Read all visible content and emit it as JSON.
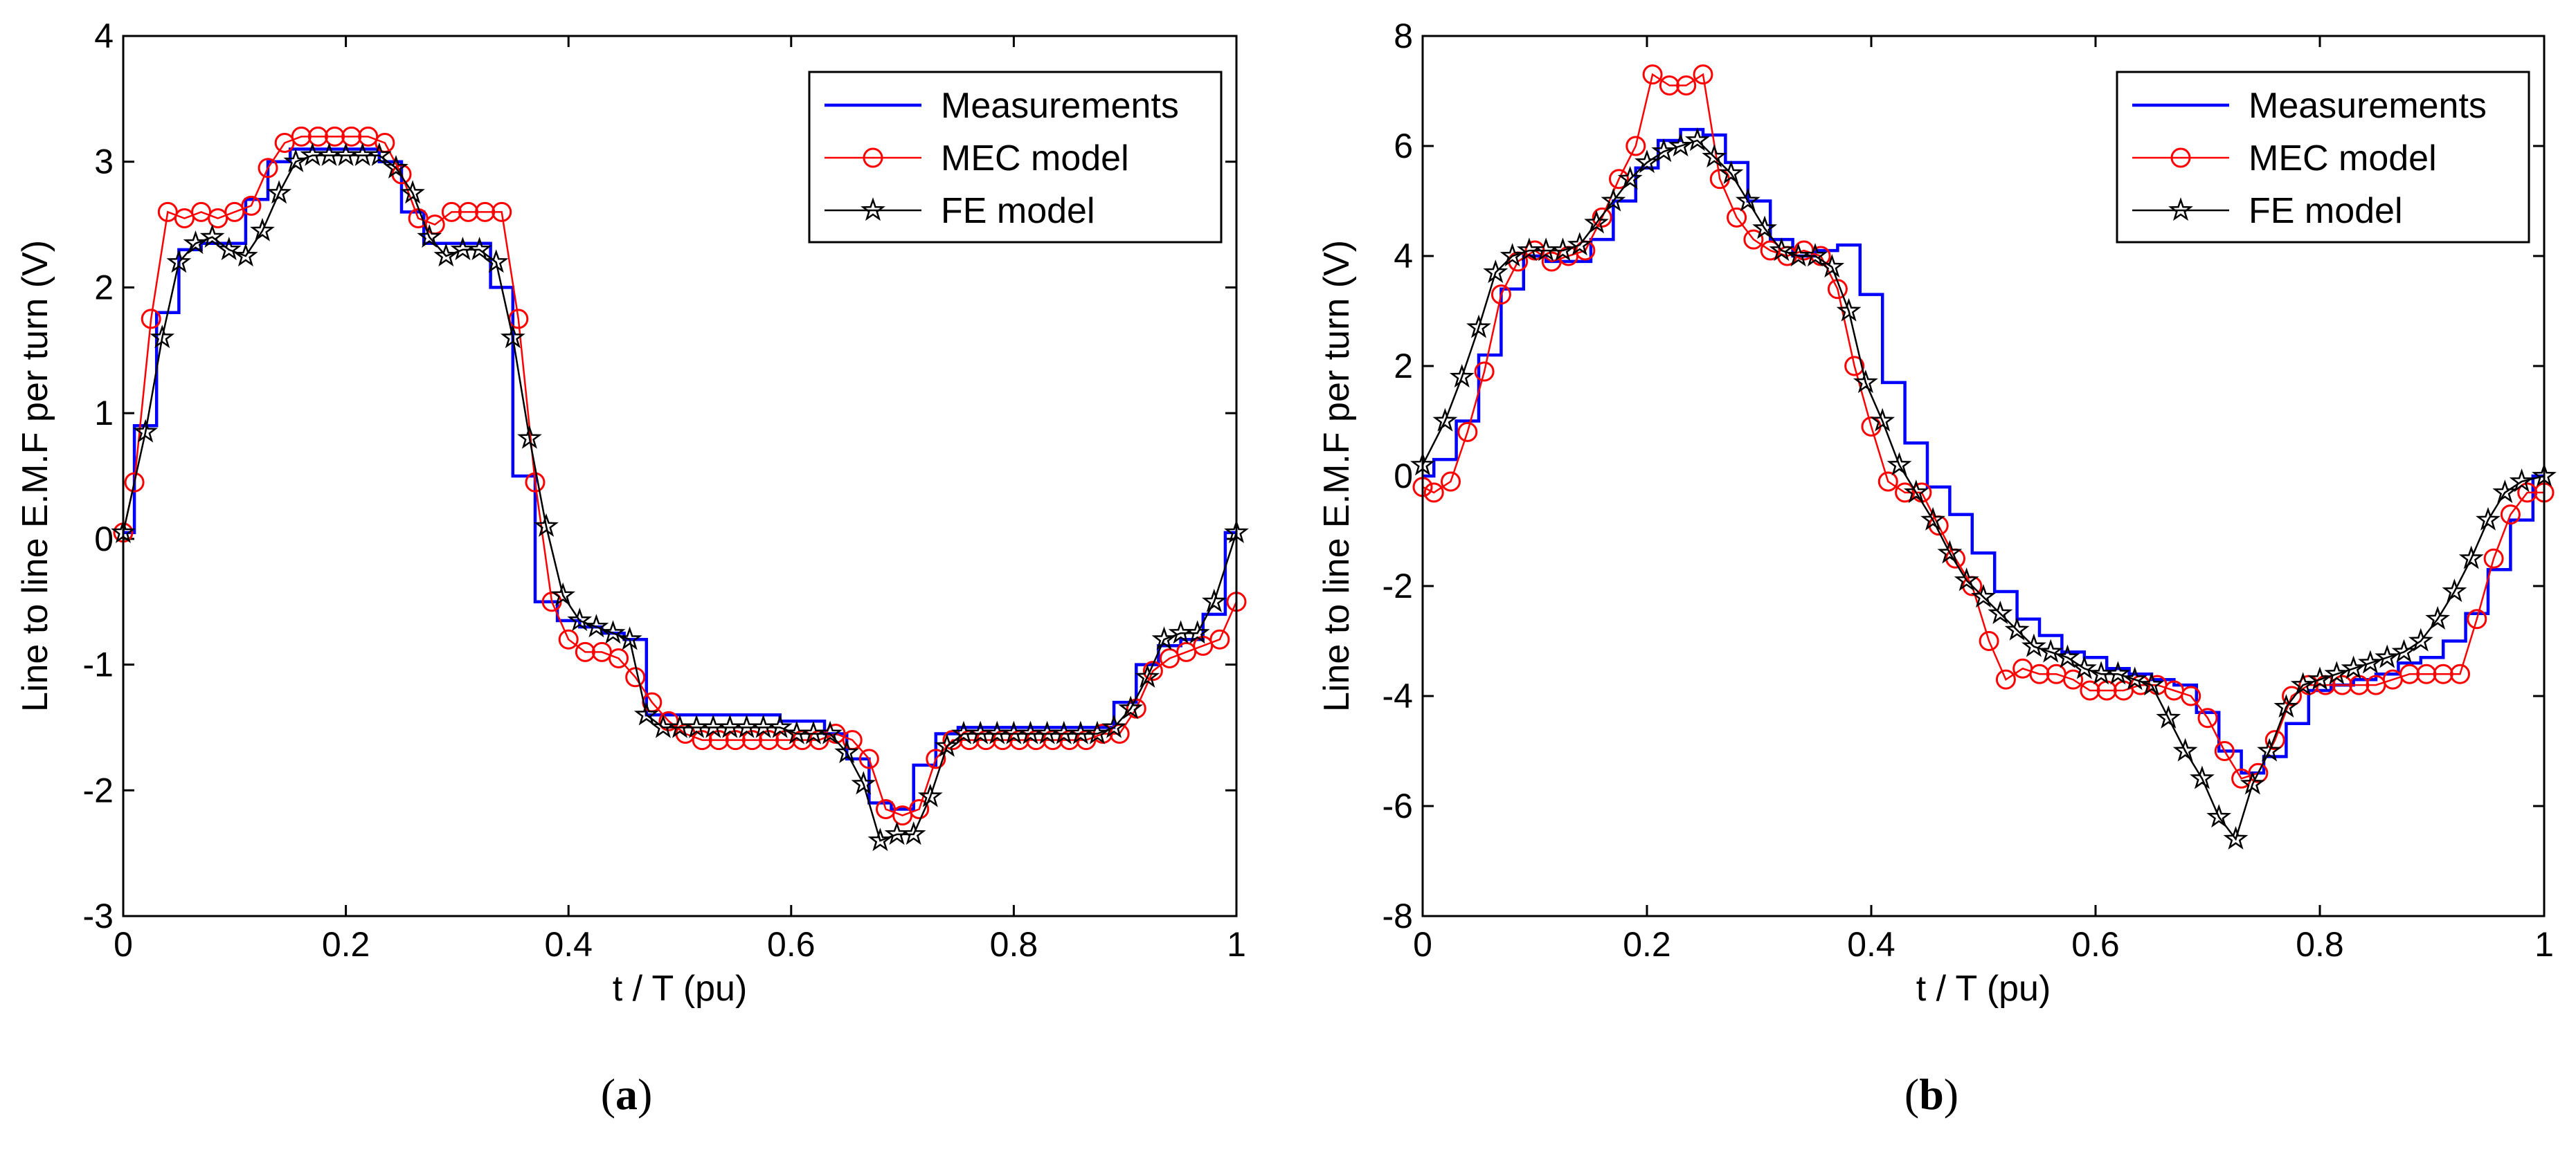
{
  "chart_data": [
    {
      "type": "line",
      "panel": "a",
      "caption_letter": "a",
      "caption_open": "(",
      "caption_close": ")",
      "xlabel": "t / T (pu)",
      "ylabel": "Line to line E.M.F per turn (V)",
      "xlim": [
        0,
        1
      ],
      "ylim": [
        -3,
        4
      ],
      "xticks": [
        0,
        0.2,
        0.4,
        0.6,
        0.8,
        1
      ],
      "xtick_labels": [
        "0",
        "0.2",
        "0.4",
        "0.6",
        "0.8",
        "1"
      ],
      "yticks": [
        -3,
        -2,
        -1,
        0,
        1,
        2,
        3,
        4
      ],
      "ytick_labels": [
        "-3",
        "-2",
        "-1",
        "0",
        "1",
        "2",
        "3",
        "4"
      ],
      "legend_position": "top-right",
      "series": [
        {
          "name": "Measurements",
          "color": "#0000ff",
          "marker": "none",
          "x": [
            0,
            0.02,
            0.04,
            0.06,
            0.08,
            0.1,
            0.12,
            0.14,
            0.16,
            0.18,
            0.2,
            0.22,
            0.24,
            0.26,
            0.28,
            0.3,
            0.32,
            0.34,
            0.36,
            0.38,
            0.4,
            0.42,
            0.44,
            0.46,
            0.48,
            0.5,
            0.52,
            0.54,
            0.56,
            0.58,
            0.6,
            0.62,
            0.64,
            0.66,
            0.68,
            0.7,
            0.72,
            0.74,
            0.76,
            0.78,
            0.8,
            0.82,
            0.84,
            0.86,
            0.88,
            0.9,
            0.92,
            0.94,
            0.96,
            0.98,
            1.0
          ],
          "y": [
            0.05,
            0.9,
            1.8,
            2.3,
            2.35,
            2.35,
            2.7,
            3.0,
            3.1,
            3.1,
            3.1,
            3.1,
            3.0,
            2.6,
            2.35,
            2.35,
            2.35,
            2.0,
            0.5,
            -0.5,
            -0.65,
            -0.7,
            -0.75,
            -0.8,
            -1.4,
            -1.4,
            -1.4,
            -1.4,
            -1.4,
            -1.4,
            -1.45,
            -1.45,
            -1.55,
            -1.75,
            -2.1,
            -2.15,
            -1.8,
            -1.55,
            -1.5,
            -1.5,
            -1.5,
            -1.5,
            -1.5,
            -1.5,
            -1.5,
            -1.3,
            -1.0,
            -0.85,
            -0.8,
            -0.6,
            0.05
          ]
        },
        {
          "name": "MEC model",
          "color": "#ff0000",
          "marker": "circle",
          "x": [
            0,
            0.01,
            0.025,
            0.04,
            0.055,
            0.07,
            0.085,
            0.1,
            0.115,
            0.13,
            0.145,
            0.16,
            0.175,
            0.19,
            0.205,
            0.22,
            0.235,
            0.25,
            0.265,
            0.28,
            0.295,
            0.31,
            0.325,
            0.34,
            0.355,
            0.37,
            0.385,
            0.4,
            0.415,
            0.43,
            0.445,
            0.46,
            0.475,
            0.49,
            0.505,
            0.52,
            0.535,
            0.55,
            0.565,
            0.58,
            0.595,
            0.61,
            0.625,
            0.64,
            0.655,
            0.67,
            0.685,
            0.7,
            0.715,
            0.73,
            0.745,
            0.76,
            0.775,
            0.79,
            0.805,
            0.82,
            0.835,
            0.85,
            0.865,
            0.88,
            0.895,
            0.91,
            0.925,
            0.94,
            0.955,
            0.97,
            0.985,
            1.0
          ],
          "y": [
            0.05,
            0.45,
            1.75,
            2.6,
            2.55,
            2.6,
            2.55,
            2.6,
            2.65,
            2.95,
            3.15,
            3.2,
            3.2,
            3.2,
            3.2,
            3.2,
            3.15,
            2.9,
            2.55,
            2.5,
            2.6,
            2.6,
            2.6,
            2.6,
            1.75,
            0.45,
            -0.5,
            -0.8,
            -0.9,
            -0.9,
            -0.95,
            -1.1,
            -1.3,
            -1.45,
            -1.55,
            -1.6,
            -1.6,
            -1.6,
            -1.6,
            -1.6,
            -1.6,
            -1.6,
            -1.6,
            -1.55,
            -1.6,
            -1.75,
            -2.15,
            -2.2,
            -2.15,
            -1.75,
            -1.6,
            -1.6,
            -1.6,
            -1.6,
            -1.6,
            -1.6,
            -1.6,
            -1.6,
            -1.6,
            -1.55,
            -1.55,
            -1.35,
            -1.05,
            -0.95,
            -0.9,
            -0.85,
            -0.8,
            -0.5
          ]
        },
        {
          "name": "FE model",
          "color": "#000000",
          "marker": "star",
          "x": [
            0,
            0.02,
            0.035,
            0.05,
            0.065,
            0.08,
            0.095,
            0.11,
            0.125,
            0.14,
            0.155,
            0.17,
            0.185,
            0.2,
            0.215,
            0.23,
            0.245,
            0.26,
            0.275,
            0.29,
            0.305,
            0.32,
            0.335,
            0.35,
            0.365,
            0.38,
            0.395,
            0.41,
            0.425,
            0.44,
            0.455,
            0.47,
            0.485,
            0.5,
            0.515,
            0.53,
            0.545,
            0.56,
            0.575,
            0.59,
            0.605,
            0.62,
            0.635,
            0.65,
            0.665,
            0.68,
            0.695,
            0.71,
            0.725,
            0.74,
            0.755,
            0.77,
            0.785,
            0.8,
            0.815,
            0.83,
            0.845,
            0.86,
            0.875,
            0.89,
            0.905,
            0.92,
            0.935,
            0.95,
            0.965,
            0.98,
            1.0
          ],
          "y": [
            0.05,
            0.85,
            1.6,
            2.2,
            2.35,
            2.4,
            2.3,
            2.25,
            2.45,
            2.75,
            3.0,
            3.05,
            3.05,
            3.05,
            3.05,
            3.05,
            2.95,
            2.75,
            2.4,
            2.25,
            2.3,
            2.3,
            2.2,
            1.6,
            0.8,
            0.1,
            -0.45,
            -0.65,
            -0.7,
            -0.75,
            -0.8,
            -1.4,
            -1.5,
            -1.5,
            -1.5,
            -1.5,
            -1.5,
            -1.5,
            -1.5,
            -1.5,
            -1.55,
            -1.55,
            -1.55,
            -1.7,
            -1.95,
            -2.4,
            -2.35,
            -2.35,
            -2.05,
            -1.65,
            -1.55,
            -1.55,
            -1.55,
            -1.55,
            -1.55,
            -1.55,
            -1.55,
            -1.55,
            -1.55,
            -1.5,
            -1.35,
            -1.1,
            -0.8,
            -0.75,
            -0.75,
            -0.5,
            0.05
          ]
        }
      ]
    },
    {
      "type": "line",
      "panel": "b",
      "caption_letter": "b",
      "caption_open": "(",
      "caption_close": ")",
      "xlabel": "t / T (pu)",
      "ylabel": "Line to line E.M.F per turn (V)",
      "xlim": [
        0,
        1
      ],
      "ylim": [
        -8,
        8
      ],
      "xticks": [
        0,
        0.2,
        0.4,
        0.6,
        0.8,
        1
      ],
      "xtick_labels": [
        "0",
        "0.2",
        "0.4",
        "0.6",
        "0.8",
        "1"
      ],
      "yticks": [
        -8,
        -6,
        -4,
        -2,
        0,
        2,
        4,
        6,
        8
      ],
      "ytick_labels": [
        "-8",
        "-6",
        "-4",
        "-2",
        "0",
        "2",
        "4",
        "6",
        "8"
      ],
      "legend_position": "top-right",
      "series": [
        {
          "name": "Measurements",
          "color": "#0000ff",
          "marker": "none",
          "x": [
            0,
            0.02,
            0.04,
            0.06,
            0.08,
            0.1,
            0.12,
            0.14,
            0.16,
            0.18,
            0.2,
            0.22,
            0.24,
            0.26,
            0.28,
            0.3,
            0.32,
            0.34,
            0.36,
            0.38,
            0.4,
            0.42,
            0.44,
            0.46,
            0.48,
            0.5,
            0.52,
            0.54,
            0.56,
            0.58,
            0.6,
            0.62,
            0.64,
            0.66,
            0.68,
            0.7,
            0.72,
            0.74,
            0.76,
            0.78,
            0.8,
            0.82,
            0.84,
            0.86,
            0.88,
            0.9,
            0.92,
            0.94,
            0.96,
            0.98,
            1.0
          ],
          "y": [
            0.0,
            0.3,
            1.0,
            2.2,
            3.4,
            4.0,
            3.9,
            3.9,
            4.3,
            5.0,
            5.6,
            6.1,
            6.3,
            6.2,
            5.7,
            5.0,
            4.3,
            4.0,
            4.1,
            4.2,
            3.3,
            1.7,
            0.6,
            -0.2,
            -0.7,
            -1.4,
            -2.1,
            -2.6,
            -2.9,
            -3.2,
            -3.3,
            -3.5,
            -3.6,
            -3.7,
            -3.8,
            -4.3,
            -5.0,
            -5.4,
            -5.1,
            -4.5,
            -3.9,
            -3.8,
            -3.7,
            -3.6,
            -3.4,
            -3.3,
            -3.0,
            -2.5,
            -1.7,
            -0.8,
            0.0
          ]
        },
        {
          "name": "MEC model",
          "color": "#ff0000",
          "marker": "circle",
          "x": [
            0,
            0.01,
            0.025,
            0.04,
            0.055,
            0.07,
            0.085,
            0.1,
            0.115,
            0.13,
            0.145,
            0.16,
            0.175,
            0.19,
            0.205,
            0.22,
            0.235,
            0.25,
            0.265,
            0.28,
            0.295,
            0.31,
            0.325,
            0.34,
            0.355,
            0.37,
            0.385,
            0.4,
            0.415,
            0.43,
            0.445,
            0.46,
            0.475,
            0.49,
            0.505,
            0.52,
            0.535,
            0.55,
            0.565,
            0.58,
            0.595,
            0.61,
            0.625,
            0.64,
            0.655,
            0.67,
            0.685,
            0.7,
            0.715,
            0.73,
            0.745,
            0.76,
            0.775,
            0.79,
            0.805,
            0.82,
            0.835,
            0.85,
            0.865,
            0.88,
            0.895,
            0.91,
            0.925,
            0.94,
            0.955,
            0.97,
            0.985,
            1.0
          ],
          "y": [
            -0.2,
            -0.3,
            -0.1,
            0.8,
            1.9,
            3.3,
            3.9,
            4.1,
            3.9,
            4.0,
            4.1,
            4.7,
            5.4,
            6.0,
            7.3,
            7.1,
            7.1,
            7.3,
            5.4,
            4.7,
            4.3,
            4.1,
            4.0,
            4.1,
            4.0,
            3.4,
            2.0,
            0.9,
            -0.1,
            -0.3,
            -0.3,
            -0.9,
            -1.5,
            -2.0,
            -3.0,
            -3.7,
            -3.5,
            -3.6,
            -3.6,
            -3.7,
            -3.9,
            -3.9,
            -3.9,
            -3.8,
            -3.8,
            -3.9,
            -4.0,
            -4.4,
            -5.0,
            -5.5,
            -5.4,
            -4.8,
            -4.0,
            -3.8,
            -3.8,
            -3.8,
            -3.8,
            -3.8,
            -3.7,
            -3.6,
            -3.6,
            -3.6,
            -3.6,
            -2.6,
            -1.5,
            -0.7,
            -0.3,
            -0.3
          ]
        },
        {
          "name": "FE model",
          "color": "#000000",
          "marker": "star",
          "x": [
            0,
            0.02,
            0.035,
            0.05,
            0.065,
            0.08,
            0.095,
            0.11,
            0.125,
            0.14,
            0.155,
            0.17,
            0.185,
            0.2,
            0.215,
            0.23,
            0.245,
            0.26,
            0.275,
            0.29,
            0.305,
            0.32,
            0.335,
            0.35,
            0.365,
            0.38,
            0.395,
            0.41,
            0.425,
            0.44,
            0.455,
            0.47,
            0.485,
            0.5,
            0.515,
            0.53,
            0.545,
            0.56,
            0.575,
            0.59,
            0.605,
            0.62,
            0.635,
            0.65,
            0.665,
            0.68,
            0.695,
            0.71,
            0.725,
            0.74,
            0.755,
            0.77,
            0.785,
            0.8,
            0.815,
            0.83,
            0.845,
            0.86,
            0.875,
            0.89,
            0.905,
            0.92,
            0.935,
            0.95,
            0.965,
            0.98,
            1.0
          ],
          "y": [
            0.2,
            1.0,
            1.8,
            2.7,
            3.7,
            4.0,
            4.1,
            4.1,
            4.1,
            4.2,
            4.6,
            5.0,
            5.4,
            5.7,
            5.9,
            6.0,
            6.1,
            5.8,
            5.5,
            5.0,
            4.5,
            4.1,
            4.0,
            4.0,
            3.8,
            3.0,
            1.7,
            1.0,
            0.2,
            -0.3,
            -0.8,
            -1.4,
            -1.9,
            -2.2,
            -2.5,
            -2.8,
            -3.1,
            -3.2,
            -3.3,
            -3.5,
            -3.6,
            -3.6,
            -3.7,
            -3.8,
            -4.4,
            -5.0,
            -5.5,
            -6.2,
            -6.6,
            -5.6,
            -5.0,
            -4.2,
            -3.8,
            -3.7,
            -3.6,
            -3.5,
            -3.4,
            -3.3,
            -3.2,
            -3.0,
            -2.6,
            -2.1,
            -1.5,
            -0.8,
            -0.3,
            -0.1,
            0.0
          ]
        }
      ]
    }
  ]
}
